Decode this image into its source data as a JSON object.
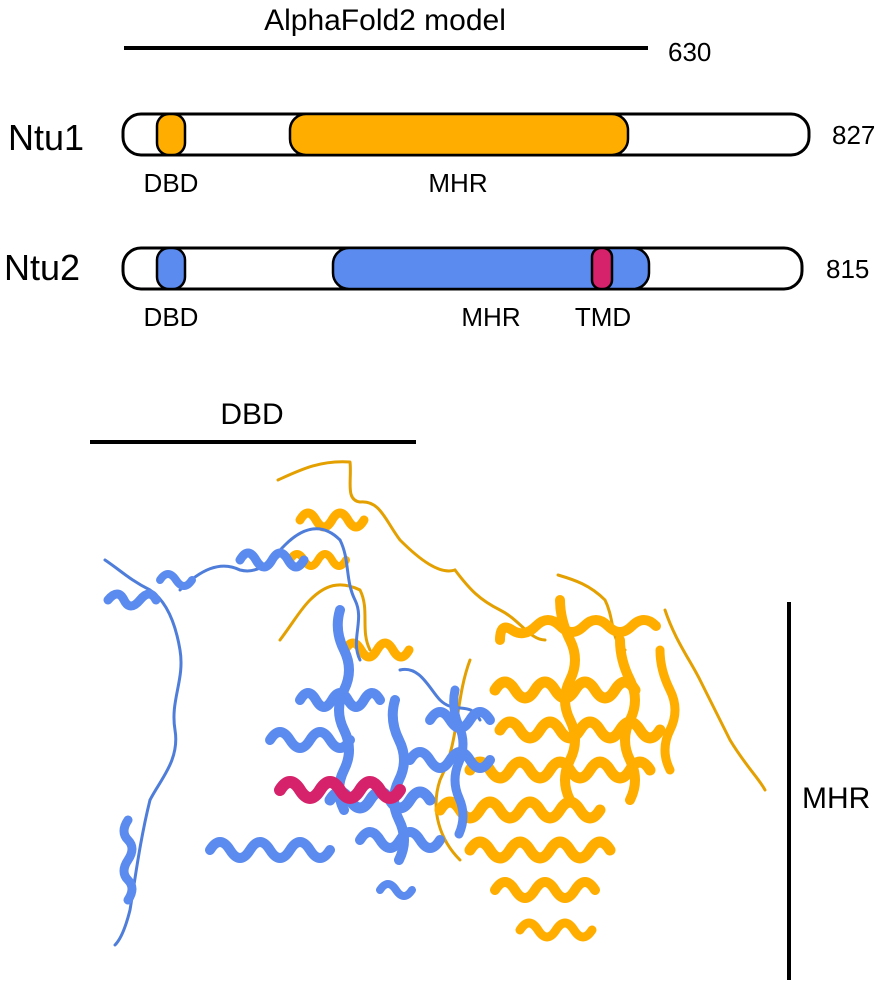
{
  "header": {
    "model_label": "AlphaFold2 model",
    "model_end": "630"
  },
  "proteins": [
    {
      "name": "Ntu1",
      "length": "827",
      "color": "#FFAE00",
      "domains": [
        {
          "label": "DBD",
          "start": 45,
          "end": 77
        },
        {
          "label": "MHR",
          "start": 200,
          "end": 620
        }
      ]
    },
    {
      "name": "Ntu2",
      "length": "815",
      "color": "#5B8BEF",
      "domains": [
        {
          "label": "DBD",
          "start": 45,
          "end": 77
        },
        {
          "label": "MHR",
          "start": 255,
          "end": 655
        },
        {
          "label": "TMD",
          "start": 575,
          "end": 597
        }
      ]
    }
  ],
  "colors": {
    "ntu1": "#FFAE00",
    "ntu2": "#5B8BEF",
    "tmd": "#D6226A"
  },
  "structure": {
    "dbd_label": "DBD",
    "mhr_label": "MHR"
  }
}
